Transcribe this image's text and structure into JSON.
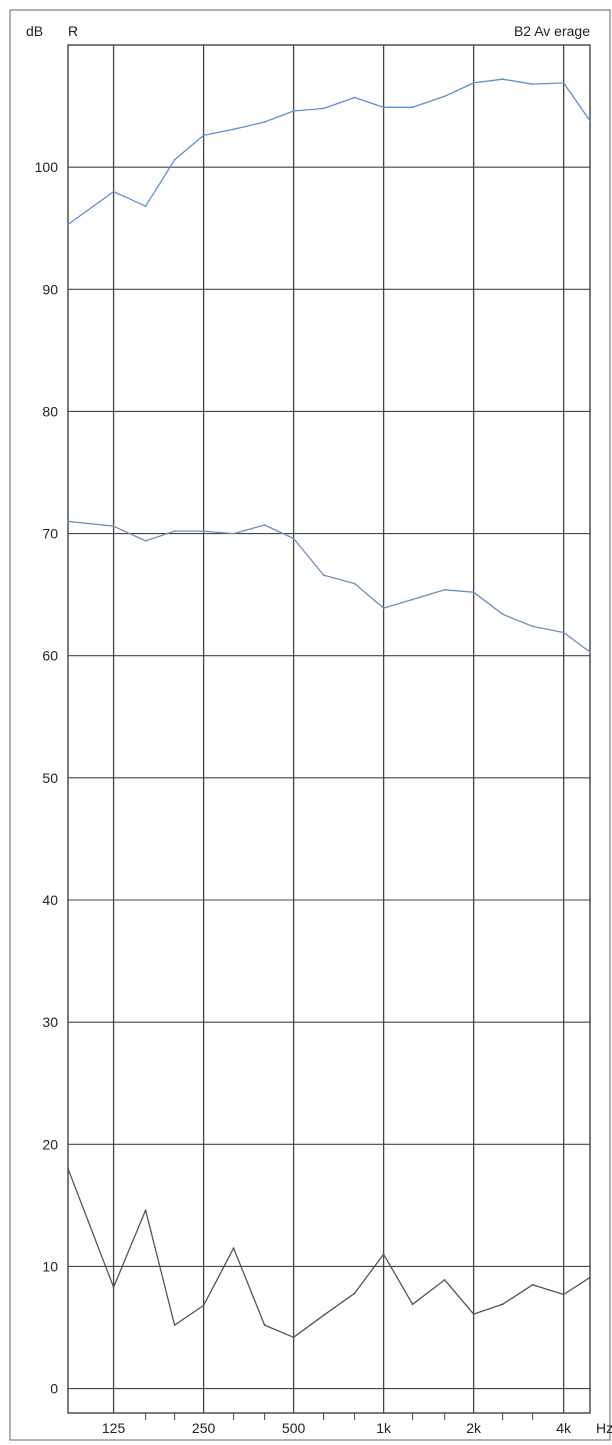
{
  "header": {
    "unit": "dB",
    "ear": "R",
    "title": "B2 Av erage"
  },
  "colors": {
    "upper_series": "#5b8fd4",
    "middle_series": "#6f8fb8",
    "lower_series": "#555555",
    "grid": "#444444",
    "background": "#ffffff"
  },
  "chart_data": {
    "type": "line",
    "title": "B2 Av erage",
    "ylabel": "dB",
    "xlabel": "Hz",
    "x_scale": "log",
    "xlim": [
      88,
      4900
    ],
    "ylim": [
      -2,
      110
    ],
    "grid": true,
    "y_ticks": [
      0,
      10,
      20,
      30,
      40,
      50,
      60,
      70,
      80,
      90,
      100
    ],
    "y_tick_labels": [
      "0",
      "10",
      "20",
      "30",
      "40",
      "50",
      "60",
      "70",
      "80",
      "90",
      "100"
    ],
    "x_ticks": [
      125,
      250,
      500,
      1000,
      2000,
      4000
    ],
    "x_tick_labels": [
      "125",
      "250",
      "500",
      "1k",
      "2k",
      "4k"
    ],
    "x_unit_label": "Hz",
    "series": [
      {
        "color": "#5b8fd4",
        "x": [
          88,
          125,
          160,
          200,
          250,
          315,
          400,
          500,
          630,
          800,
          1000,
          1250,
          1600,
          2000,
          2500,
          3150,
          4000,
          4900
        ],
        "y": [
          95.3,
          98.0,
          96.8,
          100.6,
          102.6,
          103.1,
          103.7,
          104.6,
          104.8,
          105.7,
          104.9,
          104.9,
          105.8,
          106.9,
          107.2,
          106.8,
          106.9,
          103.8
        ]
      },
      {
        "color": "#6f8fb8",
        "x": [
          88,
          125,
          160,
          200,
          250,
          315,
          400,
          500,
          630,
          800,
          1000,
          1250,
          1600,
          2000,
          2500,
          3150,
          4000,
          4900
        ],
        "y": [
          71.0,
          70.6,
          69.4,
          70.2,
          70.2,
          70.0,
          70.7,
          69.6,
          66.6,
          65.9,
          63.9,
          64.6,
          65.4,
          65.2,
          63.4,
          62.4,
          61.9,
          60.3
        ]
      },
      {
        "color": "#555555",
        "x": [
          88,
          125,
          160,
          200,
          250,
          315,
          400,
          500,
          630,
          800,
          1000,
          1250,
          1600,
          2000,
          2500,
          3150,
          4000,
          4900
        ],
        "y": [
          18.0,
          8.3,
          14.6,
          5.2,
          6.8,
          11.5,
          5.2,
          4.2,
          6.0,
          7.8,
          11.0,
          6.9,
          8.9,
          6.1,
          6.9,
          8.5,
          7.7,
          9.1
        ]
      }
    ]
  }
}
